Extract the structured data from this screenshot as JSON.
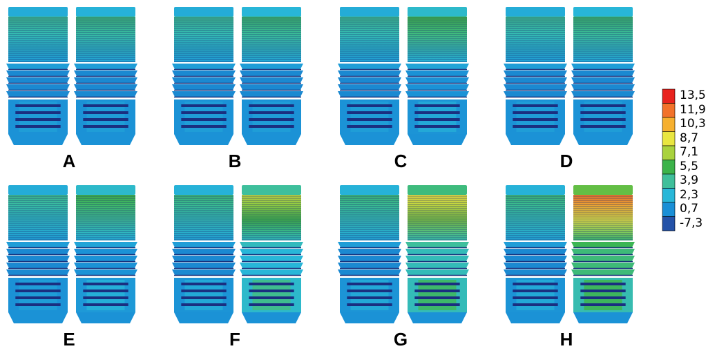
{
  "panels": [
    {
      "label": "A",
      "left_stress": [
        0.35,
        0.1,
        0.15
      ],
      "right_stress": [
        0.38,
        0.1,
        0.15
      ]
    },
    {
      "label": "B",
      "left_stress": [
        0.35,
        0.1,
        0.15
      ],
      "right_stress": [
        0.4,
        0.1,
        0.15
      ]
    },
    {
      "label": "C",
      "left_stress": [
        0.35,
        0.1,
        0.15
      ],
      "right_stress": [
        0.45,
        0.12,
        0.18
      ]
    },
    {
      "label": "D",
      "left_stress": [
        0.35,
        0.1,
        0.15
      ],
      "right_stress": [
        0.4,
        0.1,
        0.15
      ]
    },
    {
      "label": "E",
      "left_stress": [
        0.35,
        0.1,
        0.15
      ],
      "right_stress": [
        0.45,
        0.12,
        0.2
      ]
    },
    {
      "label": "F",
      "left_stress": [
        0.38,
        0.1,
        0.18
      ],
      "right_stress": [
        0.6,
        0.22,
        0.35
      ]
    },
    {
      "label": "G",
      "left_stress": [
        0.38,
        0.1,
        0.18
      ],
      "right_stress": [
        0.68,
        0.28,
        0.4
      ]
    },
    {
      "label": "H",
      "left_stress": [
        0.38,
        0.1,
        0.18
      ],
      "right_stress": [
        0.88,
        0.38,
        0.42
      ]
    }
  ],
  "legend": {
    "labels": [
      "13,5",
      "11,9",
      "10,3",
      "8,7",
      "7,1",
      "5,5",
      "3,9",
      "2,3",
      "0,7",
      "-7,3"
    ],
    "colors": [
      "#e8231e",
      "#f2722a",
      "#f6b02f",
      "#e9e641",
      "#a9d23d",
      "#3cb34a",
      "#3fbf9a",
      "#28b7d8",
      "#1a8fd6",
      "#2452a8"
    ]
  }
}
